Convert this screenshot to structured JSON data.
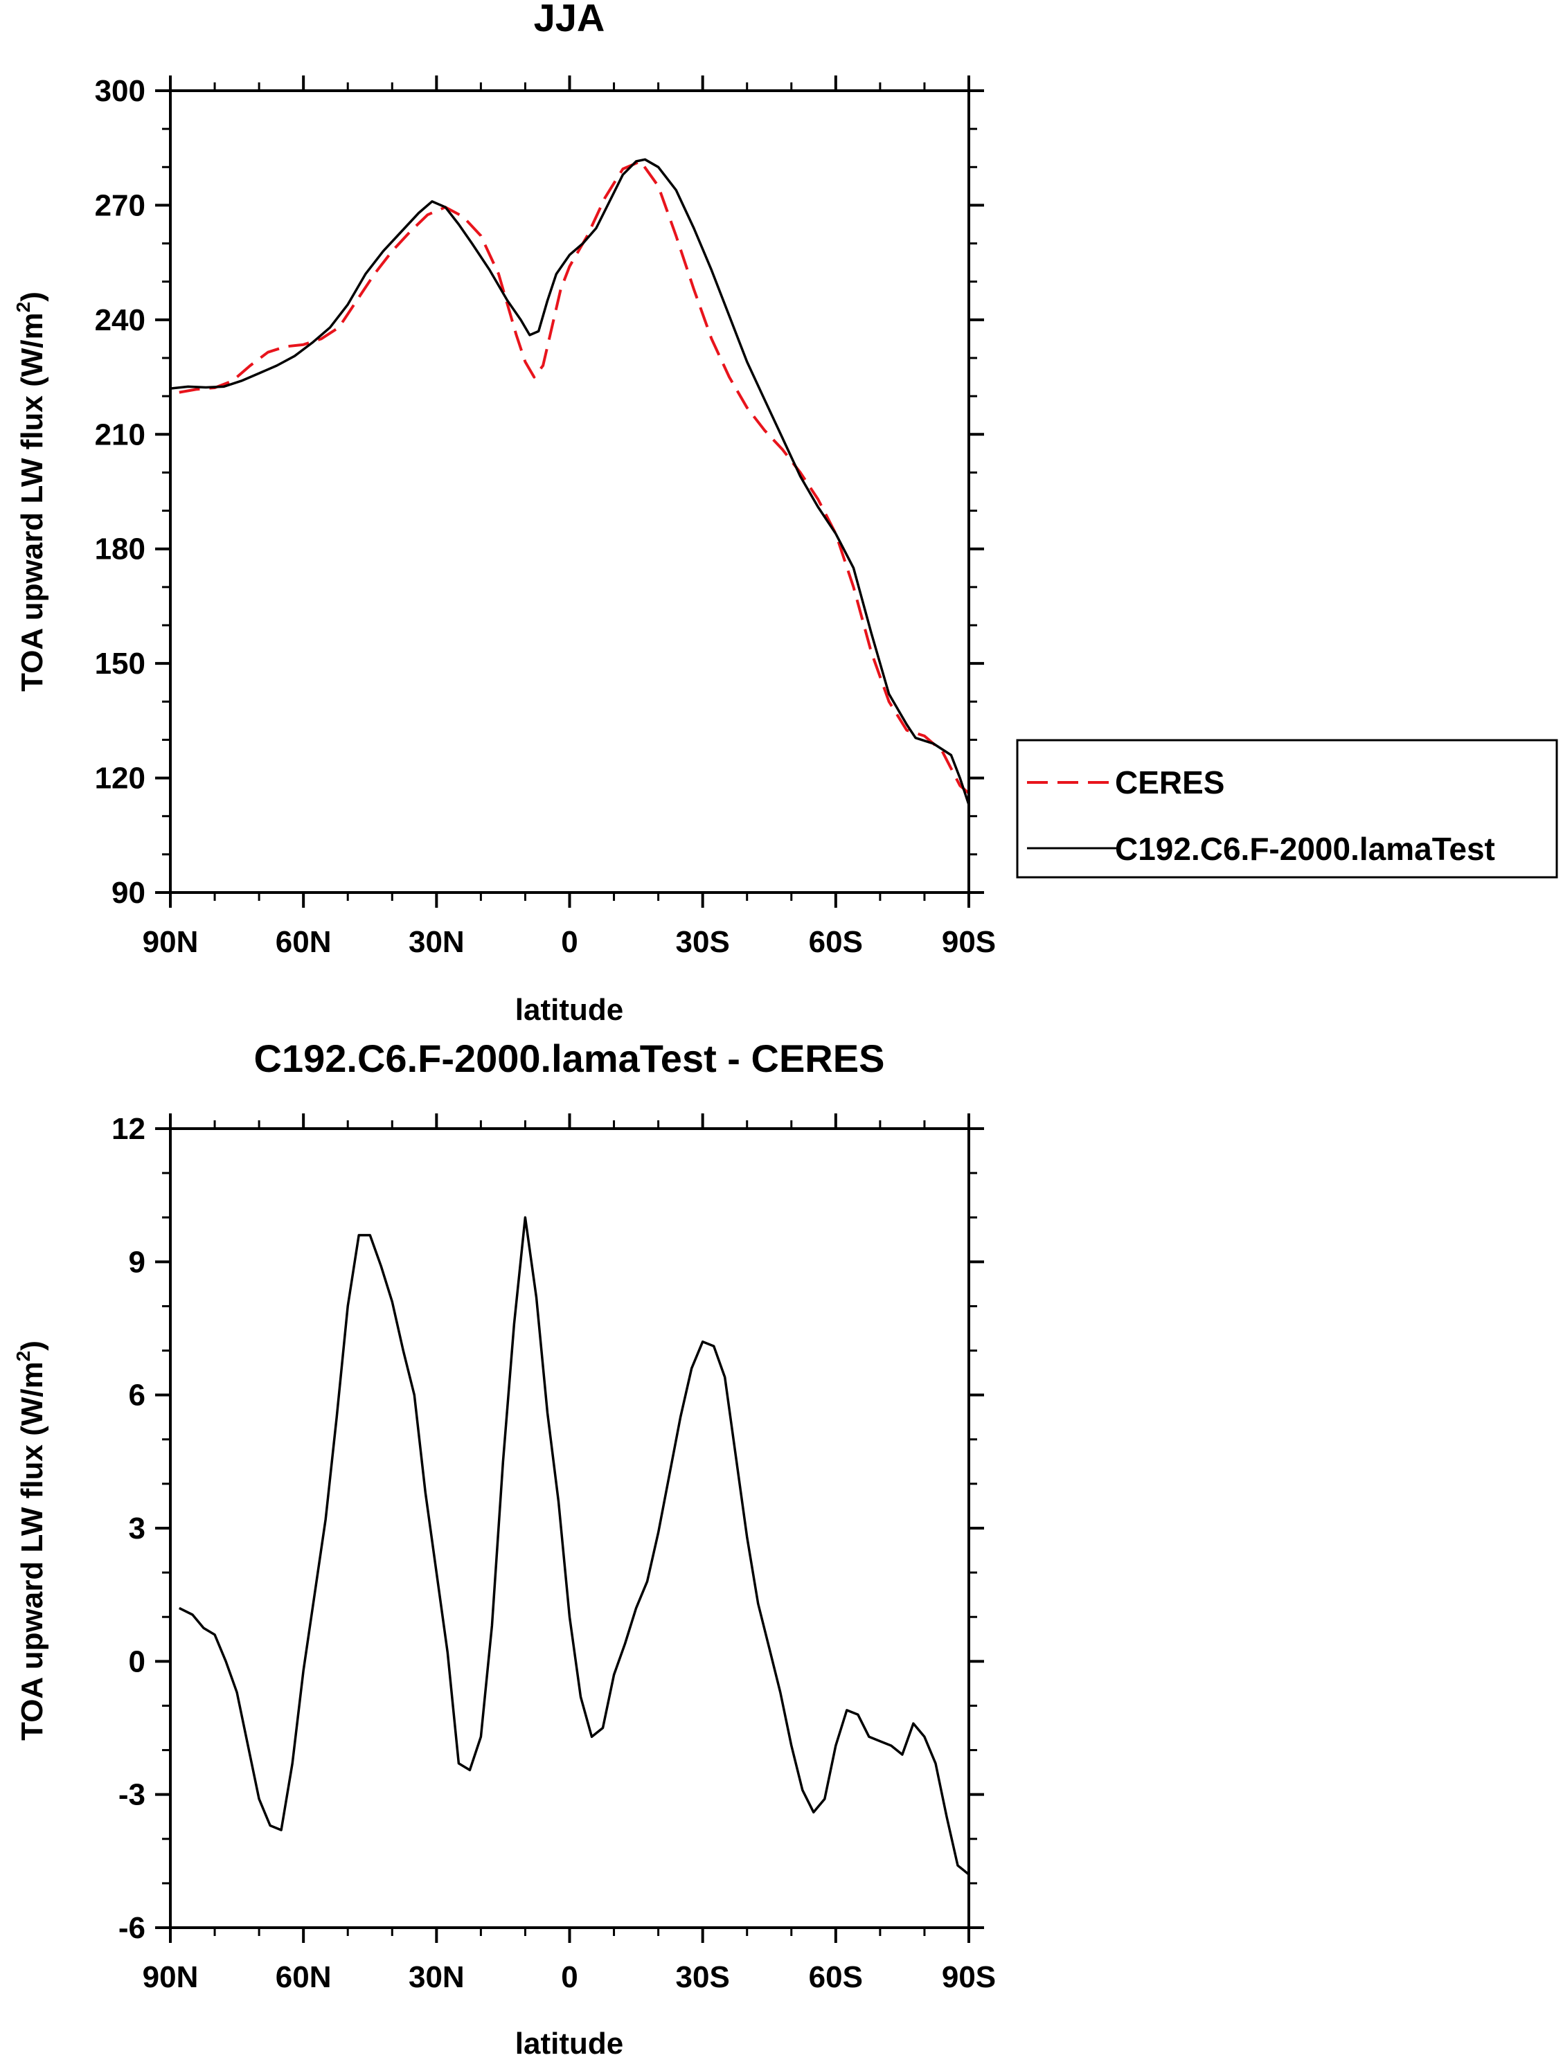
{
  "chart_data": [
    {
      "type": "line",
      "title": "JJA",
      "xlabel": "latitude",
      "ylabel": "TOA upward LW flux (W/m",
      "ylabel_sup": "2",
      "ylabel_close": ")",
      "xlim": [
        -90,
        90
      ],
      "ylim": [
        90,
        300
      ],
      "xticks": [
        -90,
        -60,
        -30,
        0,
        30,
        60,
        90
      ],
      "xtick_labels": [
        "90N",
        "60N",
        "30N",
        "0",
        "30S",
        "60S",
        "90S"
      ],
      "yticks": [
        90,
        120,
        150,
        180,
        210,
        240,
        270,
        300
      ],
      "ytick_labels": [
        "90",
        "120",
        "150",
        "180",
        "210",
        "240",
        "270",
        "300"
      ],
      "legend_position": "right",
      "series": [
        {
          "name": "CERES",
          "color": "#e8141c",
          "dash": true,
          "x": [
            -88,
            -84,
            -80,
            -76,
            -72,
            -68,
            -64,
            -60,
            -56,
            -52,
            -48,
            -44,
            -40,
            -36,
            -32,
            -28,
            -24,
            -20,
            -16,
            -12,
            -10,
            -8,
            -6,
            -4,
            -2,
            0,
            4,
            8,
            12,
            16,
            20,
            24,
            28,
            32,
            36,
            40,
            44,
            48,
            52,
            56,
            60,
            64,
            68,
            72,
            76,
            80,
            84,
            88,
            90
          ],
          "y": [
            221,
            221.8,
            222.2,
            224,
            228,
            231.5,
            233,
            233.5,
            235,
            238,
            245,
            252,
            258,
            263,
            267.5,
            269.5,
            267,
            262,
            252,
            236,
            229,
            225,
            228,
            238,
            248,
            254,
            262,
            272,
            279.5,
            281.5,
            275,
            262,
            248,
            235,
            225,
            217,
            211,
            206,
            200,
            193,
            184,
            170,
            153,
            140,
            132.5,
            131,
            127,
            118,
            116
          ]
        },
        {
          "name": "C192.C6.F-2000.lamaTest",
          "color": "#000000",
          "dash": false,
          "x": [
            -90,
            -86,
            -82,
            -78,
            -74,
            -70,
            -66,
            -62,
            -58,
            -54,
            -50,
            -46,
            -42,
            -38,
            -34,
            -31,
            -28,
            -25,
            -22,
            -18,
            -14,
            -11,
            -9,
            -7,
            -5,
            -3,
            0,
            3,
            6,
            9,
            12,
            15,
            17,
            20,
            24,
            28,
            32,
            36,
            40,
            44,
            48,
            52,
            56,
            60,
            64,
            68,
            72,
            76,
            78,
            82,
            86,
            88,
            90
          ],
          "y": [
            222,
            222.5,
            222.3,
            222.5,
            224,
            226,
            228,
            230.5,
            234,
            238,
            244,
            252,
            258,
            263,
            268,
            271,
            269.5,
            265,
            260,
            253,
            245,
            240,
            236,
            237,
            245,
            252,
            257,
            260,
            264,
            271,
            278,
            281.5,
            282,
            280,
            274,
            264,
            253,
            241,
            229,
            219,
            209,
            199,
            191,
            184,
            175,
            158,
            142,
            134,
            130.5,
            129,
            126,
            120,
            113
          ]
        }
      ]
    },
    {
      "type": "line",
      "title": "C192.C6.F-2000.lamaTest - CERES",
      "xlabel": "latitude",
      "ylabel": "TOA upward LW flux (W/m",
      "ylabel_sup": "2",
      "ylabel_close": ")",
      "xlim": [
        -90,
        90
      ],
      "ylim": [
        -6,
        12
      ],
      "xticks": [
        -90,
        -60,
        -30,
        0,
        30,
        60,
        90
      ],
      "xtick_labels": [
        "90N",
        "60N",
        "30N",
        "0",
        "30S",
        "60S",
        "90S"
      ],
      "yticks": [
        -6,
        -3,
        0,
        3,
        6,
        9,
        12
      ],
      "ytick_labels": [
        "-6",
        "-3",
        "0",
        "3",
        "6",
        "9",
        "12"
      ],
      "series": [
        {
          "name": "C192.C6.F-2000.lamaTest - CERES",
          "color": "#000000",
          "dash": false,
          "x": [
            -88,
            -85,
            -82.5,
            -80,
            -77.5,
            -75,
            -72.5,
            -70,
            -67.5,
            -65,
            -62.5,
            -60,
            -57.5,
            -55,
            -52.5,
            -50,
            -47.5,
            -45,
            -42.5,
            -40,
            -37.5,
            -35,
            -32.5,
            -30,
            -27.5,
            -25,
            -22.5,
            -20,
            -17.5,
            -15,
            -12.5,
            -10,
            -7.5,
            -5,
            -2.5,
            0,
            2.5,
            5,
            7.5,
            10,
            12.5,
            15,
            17.5,
            20,
            22.5,
            25,
            27.5,
            30,
            32.5,
            35,
            37.5,
            40,
            42.5,
            45,
            47.5,
            50,
            52.5,
            55,
            57.5,
            60,
            62.5,
            65,
            67.5,
            70,
            72.5,
            75,
            77.5,
            80,
            82.5,
            85,
            87.5,
            90
          ],
          "y": [
            1.2,
            1.05,
            0.75,
            0.6,
            0.0,
            -0.7,
            -1.9,
            -3.1,
            -3.7,
            -3.8,
            -2.3,
            -0.2,
            1.5,
            3.2,
            5.5,
            8.0,
            9.6,
            9.6,
            8.9,
            8.1,
            7.0,
            6.0,
            3.8,
            2.0,
            0.2,
            -2.3,
            -2.45,
            -1.7,
            0.8,
            4.5,
            7.6,
            10.0,
            8.2,
            5.6,
            3.6,
            1.0,
            -0.8,
            -1.7,
            -1.5,
            -0.3,
            0.4,
            1.2,
            1.8,
            2.9,
            4.2,
            5.5,
            6.6,
            7.2,
            7.1,
            6.4,
            4.6,
            2.8,
            1.3,
            0.3,
            -0.7,
            -1.9,
            -2.9,
            -3.4,
            -3.1,
            -1.9,
            -1.1,
            -1.2,
            -1.7,
            -1.8,
            -1.9,
            -2.1,
            -1.4,
            -1.7,
            -2.3,
            -3.5,
            -4.6,
            -4.8
          ]
        }
      ]
    }
  ]
}
